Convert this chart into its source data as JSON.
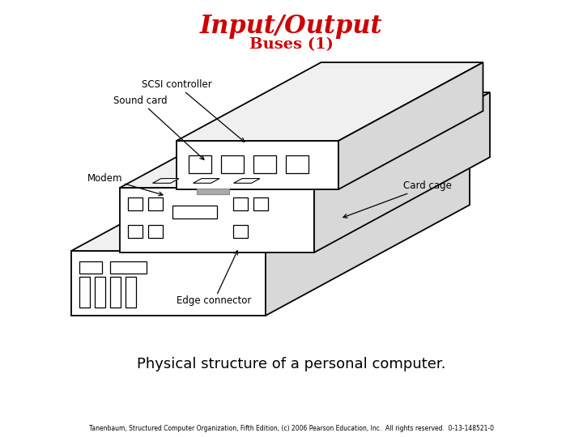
{
  "title_line1": "Input/Output",
  "title_line2": "Buses (1)",
  "title_color": "#cc0000",
  "caption": "Physical structure of a personal computer.",
  "footer": "Tanenbaum, Structured Computer Organization, Fifth Edition, (c) 2006 Pearson Education, Inc.  All rights reserved.  0-13-148521-0",
  "bg_color": "#ffffff",
  "labels": {
    "scsi": "SCSI controller",
    "sound": "Sound card",
    "modem": "Modem",
    "card_cage": "Card cage",
    "edge_connector": "Edge connector"
  }
}
